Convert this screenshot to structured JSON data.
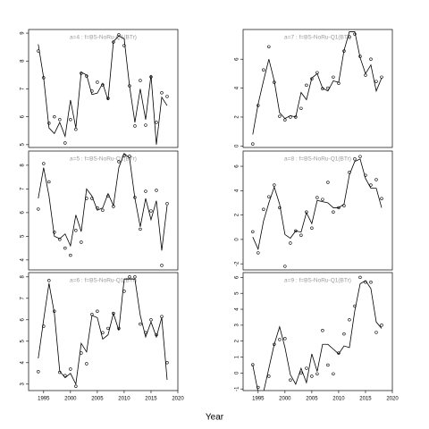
{
  "xlabel": "Year",
  "chart_data": [
    {
      "type": "line",
      "title": "a=4 : f=BS-NoRu-Q1(BTr)",
      "x": [
        1994,
        1995,
        1996,
        1997,
        1998,
        1999,
        2000,
        2001,
        2002,
        2003,
        2004,
        2005,
        2006,
        2007,
        2008,
        2009,
        2010,
        2011,
        2012,
        2013,
        2014,
        2015,
        2016,
        2017,
        2018
      ],
      "series": [
        {
          "style": "points",
          "color": "#000000",
          "values": [
            8.36,
            7.4,
            5.77,
            6.0,
            5.9,
            5.06,
            5.9,
            5.55,
            7.56,
            7.46,
            6.92,
            7.24,
            7.14,
            6.66,
            8.68,
            8.94,
            8.55,
            7.11,
            5.67,
            7.3,
            5.7,
            7.43,
            5.8,
            6.86,
            6.73
          ]
        },
        {
          "style": "line",
          "color": "#000000",
          "values": [
            8.6,
            7.4,
            5.6,
            5.4,
            5.8,
            5.3,
            6.6,
            5.6,
            7.6,
            7.5,
            6.8,
            6.85,
            7.2,
            6.6,
            8.7,
            8.9,
            8.8,
            7.1,
            5.8,
            7.0,
            5.9,
            7.5,
            5.0,
            6.7,
            6.4
          ]
        }
      ],
      "xlim": [
        1992.2,
        2020
      ],
      "ylim": [
        4.9,
        9.13
      ],
      "yticks": [
        5,
        6,
        7,
        8,
        9
      ]
    },
    {
      "type": "line",
      "title": "a=5 : f=BS-NoRu-Q1(BTr)",
      "x": [
        1994,
        1995,
        1996,
        1997,
        1998,
        1999,
        2000,
        2001,
        2002,
        2003,
        2004,
        2005,
        2006,
        2007,
        2008,
        2009,
        2010,
        2011,
        2012,
        2013,
        2014,
        2015,
        2016,
        2017,
        2018
      ],
      "series": [
        {
          "style": "points",
          "color": "#000000",
          "values": [
            6.15,
            8.07,
            7.3,
            5.17,
            4.87,
            4.5,
            4.2,
            5.25,
            4.75,
            6.6,
            6.6,
            6.2,
            6.1,
            6.7,
            6.26,
            8.15,
            8.4,
            8.38,
            6.64,
            5.3,
            6.9,
            6.07,
            6.94,
            3.77,
            6.38
          ]
        },
        {
          "style": "line",
          "color": "#000000",
          "values": [
            6.6,
            7.9,
            6.7,
            5.0,
            4.9,
            5.1,
            4.6,
            5.9,
            5.2,
            7.0,
            6.7,
            6.1,
            6.2,
            6.8,
            6.3,
            7.9,
            8.5,
            8.3,
            6.6,
            5.4,
            6.6,
            5.7,
            6.5,
            4.4,
            6.3
          ]
        }
      ],
      "xlim": [
        1992.2,
        2020
      ],
      "ylim": [
        3.58,
        8.6
      ],
      "yticks": [
        4,
        5,
        6,
        7,
        8
      ]
    },
    {
      "type": "line",
      "title": "a=6 : f=BS-NoRu-Q1(BTr)",
      "x": [
        1994,
        1995,
        1996,
        1997,
        1998,
        1999,
        2000,
        2001,
        2002,
        2003,
        2004,
        2005,
        2006,
        2007,
        2008,
        2009,
        2010,
        2011,
        2012,
        2013,
        2014,
        2015,
        2016,
        2017,
        2018
      ],
      "series": [
        {
          "style": "points",
          "color": "#000000",
          "values": [
            3.58,
            5.7,
            7.83,
            6.4,
            3.55,
            3.4,
            3.7,
            2.9,
            4.45,
            3.95,
            6.25,
            6.4,
            5.4,
            5.6,
            6.3,
            5.6,
            7.33,
            8.0,
            8.0,
            5.8,
            5.4,
            6.0,
            5.3,
            6.15,
            4.0
          ]
        },
        {
          "style": "line",
          "color": "#000000",
          "values": [
            4.2,
            6.0,
            7.7,
            6.3,
            3.6,
            3.3,
            3.5,
            3.0,
            4.9,
            4.5,
            6.2,
            6.1,
            5.1,
            5.3,
            6.3,
            5.5,
            7.9,
            7.9,
            7.9,
            6.2,
            5.2,
            5.9,
            5.2,
            6.1,
            3.2
          ]
        }
      ],
      "xlim": [
        1992.2,
        2020
      ],
      "ylim": [
        2.7,
        8.2
      ],
      "yticks": [
        3,
        4,
        5,
        6,
        7,
        8
      ],
      "xticks": [
        1995,
        2000,
        2005,
        2010,
        2015,
        2020
      ]
    },
    {
      "type": "line",
      "title": "a=7 : f=BS-NoRu-Q1(BTr)",
      "x": [
        1994,
        1995,
        1996,
        1997,
        1998,
        1999,
        2000,
        2001,
        2002,
        2003,
        2004,
        2005,
        2006,
        2007,
        2008,
        2009,
        2010,
        2011,
        2012,
        2013,
        2014,
        2015,
        2016,
        2017,
        2018
      ],
      "series": [
        {
          "style": "points",
          "color": "#000000",
          "values": [
            0.14,
            2.8,
            5.26,
            6.86,
            4.4,
            2.05,
            1.8,
            2.0,
            2.0,
            2.6,
            4.2,
            4.64,
            5.07,
            3.96,
            4.0,
            4.76,
            4.33,
            6.56,
            7.54,
            7.73,
            6.19,
            4.89,
            6.0,
            4.46,
            4.76
          ]
        },
        {
          "style": "line",
          "color": "#000000",
          "values": [
            0.8,
            2.9,
            4.5,
            6.0,
            4.5,
            2.3,
            1.9,
            2.1,
            2.0,
            3.7,
            3.2,
            4.7,
            5.0,
            4.0,
            3.8,
            4.5,
            4.4,
            6.6,
            7.9,
            7.9,
            6.1,
            5.0,
            5.6,
            3.8,
            4.7
          ]
        }
      ],
      "xlim": [
        1992.2,
        2020
      ],
      "ylim": [
        -0.1,
        8.05
      ],
      "yticks": [
        0,
        2,
        4,
        6
      ]
    },
    {
      "type": "line",
      "title": "a=8 : f=BS-NoRu-Q1(BTr)",
      "x": [
        1994,
        1995,
        1996,
        1997,
        1998,
        1999,
        2000,
        2001,
        2002,
        2003,
        2004,
        2005,
        2006,
        2007,
        2008,
        2009,
        2010,
        2011,
        2012,
        2013,
        2014,
        2015,
        2016,
        2017,
        2018
      ],
      "series": [
        {
          "style": "points",
          "color": "#000000",
          "values": [
            0.63,
            -1.1,
            2.47,
            3.5,
            4.46,
            2.6,
            -2.2,
            -0.3,
            0.7,
            0.34,
            2.25,
            0.93,
            3.43,
            3.28,
            4.68,
            2.25,
            2.6,
            2.76,
            5.5,
            6.6,
            6.8,
            5.26,
            4.46,
            4.9,
            3.35
          ]
        },
        {
          "style": "line",
          "color": "#000000",
          "values": [
            0.2,
            -0.8,
            1.5,
            3.0,
            4.3,
            2.9,
            0.4,
            0.1,
            0.7,
            0.6,
            2.2,
            1.3,
            3.2,
            3.1,
            3.0,
            2.6,
            2.6,
            2.9,
            5.3,
            6.4,
            6.6,
            5.0,
            4.2,
            4.2,
            2.6
          ]
        }
      ],
      "xlim": [
        1992.2,
        2020
      ],
      "ylim": [
        -2.5,
        7.25
      ],
      "yticks": [
        -2,
        0,
        2,
        4,
        6
      ]
    },
    {
      "type": "line",
      "title": "a=9 : f=BS-NoRu-Q1(BTr)",
      "x": [
        1994,
        1995,
        1996,
        1997,
        1998,
        1999,
        2000,
        2001,
        2002,
        2003,
        2004,
        2005,
        2006,
        2007,
        2008,
        2009,
        2010,
        2011,
        2012,
        2013,
        2014,
        2015,
        2016,
        2017,
        2018
      ],
      "series": [
        {
          "style": "points",
          "color": "#000000",
          "values": [
            0.52,
            -0.9,
            null,
            -0.2,
            1.8,
            2.1,
            2.16,
            -0.44,
            null,
            0.0,
            0.3,
            -0.2,
            -0.05,
            2.67,
            0.5,
            -0.05,
            1.25,
            2.45,
            3.34,
            4.2,
            6.0,
            5.7,
            5.7,
            2.55,
            3.0
          ]
        },
        {
          "style": "line",
          "color": "#000000",
          "values": [
            0.5,
            -1.2,
            -1.2,
            0.3,
            1.8,
            2.9,
            1.6,
            -0.1,
            -0.7,
            0.3,
            -0.6,
            1.2,
            0.1,
            1.8,
            1.8,
            1.5,
            1.2,
            1.7,
            1.6,
            3.9,
            5.6,
            5.8,
            5.3,
            3.2,
            2.8
          ]
        }
      ],
      "xlim": [
        1992.2,
        2020
      ],
      "ylim": [
        -1.1,
        6.3
      ],
      "yticks": [
        -1,
        0,
        1,
        2,
        3,
        4,
        5,
        6
      ],
      "xticks": [
        1995,
        2000,
        2005,
        2010,
        2015,
        2020
      ]
    }
  ]
}
